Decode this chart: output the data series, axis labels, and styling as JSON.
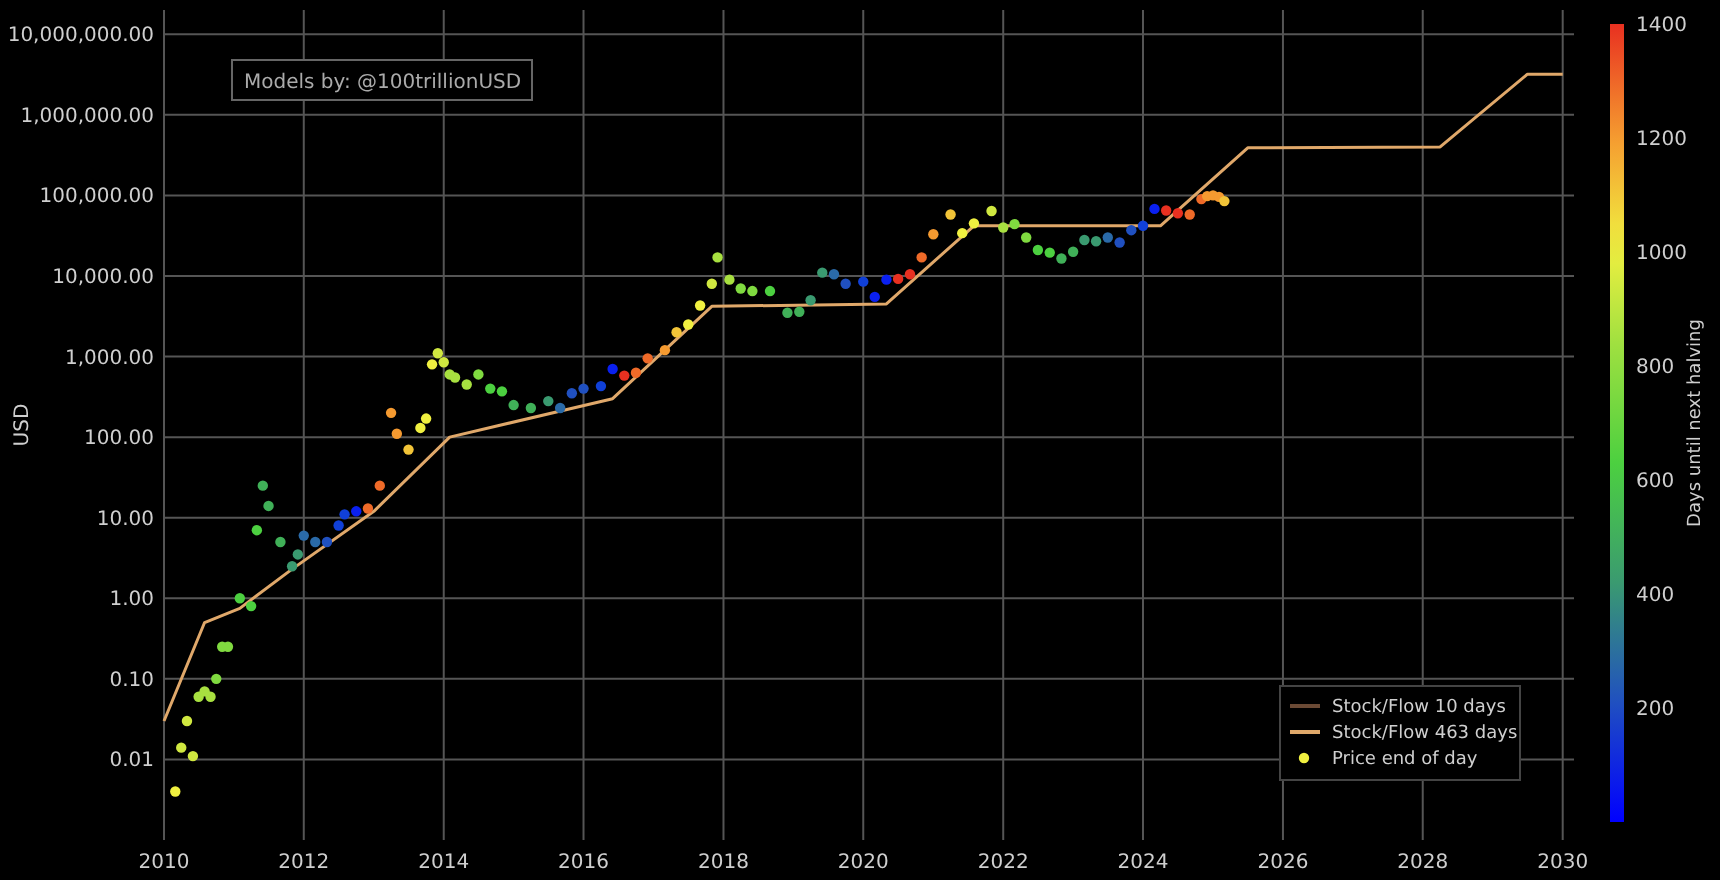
{
  "chart_data": {
    "type": "scatter",
    "ylabel": "USD",
    "clabel": "Days until next halving",
    "annotations": [
      "Models by: @100trillionUSD"
    ],
    "log": true,
    "grid": true,
    "legend": "bottom right",
    "xlim": [
      "2010-01",
      "2030-03"
    ],
    "xticks": [
      "2010",
      "2012",
      "2014",
      "2016",
      "2018",
      "2020",
      "2022",
      "2024",
      "2026",
      "2028",
      "2030"
    ],
    "ylim": [
      0.001,
      20000000
    ],
    "yticks": [
      {
        "value": 0.01,
        "label": "0.01"
      },
      {
        "value": 0.1,
        "label": "0.10"
      },
      {
        "value": 1,
        "label": "1.00"
      },
      {
        "value": 10,
        "label": "10.00"
      },
      {
        "value": 100,
        "label": "100.00"
      },
      {
        "value": 1000,
        "label": "1,000.00"
      },
      {
        "value": 10000,
        "label": "10,000.00"
      },
      {
        "value": 100000,
        "label": "100,000.00"
      },
      {
        "value": 1000000,
        "label": "1,000,000.00"
      },
      {
        "value": 10000000,
        "label": "10,000,000.00"
      }
    ],
    "clim": [
      0,
      1400
    ],
    "cticks": [
      200,
      400,
      600,
      800,
      1000,
      1200,
      1400
    ],
    "series": [
      {
        "name": "Stock/Flow 10 days",
        "type": "line",
        "color": "#6b4a35"
      },
      {
        "name": "Stock/Flow 463 days",
        "type": "line",
        "color": "#e0a86a",
        "x": [
          "2010-01",
          "2010-08",
          "2011-02",
          "2011-11",
          "2013-01",
          "2014-02",
          "2016-06",
          "2017-11",
          "2020-05",
          "2021-08",
          "2024-04",
          "2025-07",
          "2028-04",
          "2029-07",
          "2030-01"
        ],
        "values": [
          0.03,
          0.5,
          0.75,
          2.3,
          12,
          100,
          300,
          4200,
          4500,
          42000,
          42000,
          390000,
          400000,
          3200000,
          3200000
        ]
      },
      {
        "name": "Price end of day",
        "type": "scatter",
        "marker": "circle",
        "x": [
          "2010-03",
          "2010-04",
          "2010-05",
          "2010-06",
          "2010-07",
          "2010-08",
          "2010-09",
          "2010-10",
          "2010-11",
          "2010-12",
          "2011-02",
          "2011-04",
          "2011-05",
          "2011-06",
          "2011-07",
          "2011-09",
          "2011-11",
          "2011-12",
          "2012-01",
          "2012-03",
          "2012-05",
          "2012-07",
          "2012-08",
          "2012-10",
          "2012-12",
          "2013-02",
          "2013-04",
          "2013-05",
          "2013-07",
          "2013-09",
          "2013-10",
          "2013-11",
          "2013-12",
          "2014-01",
          "2014-02",
          "2014-03",
          "2014-05",
          "2014-07",
          "2014-09",
          "2014-11",
          "2015-01",
          "2015-04",
          "2015-07",
          "2015-09",
          "2015-11",
          "2016-01",
          "2016-04",
          "2016-06",
          "2016-08",
          "2016-10",
          "2016-12",
          "2017-03",
          "2017-05",
          "2017-07",
          "2017-09",
          "2017-11",
          "2017-12",
          "2018-02",
          "2018-04",
          "2018-06",
          "2018-09",
          "2018-12",
          "2019-02",
          "2019-04",
          "2019-06",
          "2019-08",
          "2019-10",
          "2020-01",
          "2020-03",
          "2020-05",
          "2020-07",
          "2020-09",
          "2020-11",
          "2021-01",
          "2021-04",
          "2021-06",
          "2021-08",
          "2021-11",
          "2022-01",
          "2022-03",
          "2022-05",
          "2022-07",
          "2022-09",
          "2022-11",
          "2023-01",
          "2023-03",
          "2023-05",
          "2023-07",
          "2023-09",
          "2023-11",
          "2024-01",
          "2024-03",
          "2024-05",
          "2024-07",
          "2024-09",
          "2024-11",
          "2024-12",
          "2025-01",
          "2025-02",
          "2025-03"
        ],
        "values": [
          0.004,
          0.014,
          0.03,
          0.011,
          0.06,
          0.07,
          0.06,
          0.1,
          0.25,
          0.25,
          1,
          0.8,
          7,
          25,
          14,
          5,
          2.5,
          3.5,
          6,
          5,
          5,
          8,
          11,
          12,
          13,
          25,
          200,
          110,
          70,
          130,
          170,
          800,
          1100,
          850,
          600,
          550,
          450,
          600,
          400,
          370,
          250,
          230,
          280,
          230,
          350,
          400,
          430,
          700,
          580,
          630,
          950,
          1200,
          2000,
          2500,
          4300,
          8000,
          17000,
          9000,
          7000,
          6500,
          6500,
          3500,
          3600,
          5000,
          11000,
          10500,
          8000,
          8500,
          5500,
          9000,
          9200,
          10500,
          17000,
          33000,
          58000,
          34000,
          45000,
          64000,
          40000,
          44000,
          30000,
          21000,
          19500,
          16500,
          20000,
          28000,
          27000,
          30000,
          26000,
          37000,
          42000,
          68000,
          65000,
          60000,
          58000,
          90000,
          98000,
          100000,
          96000,
          85000
        ],
        "colors": [
          "#f0f040",
          "#d0e840",
          "#d0e840",
          "#d0e840",
          "#a8e040",
          "#a8e040",
          "#a8e040",
          "#80da40",
          "#80da40",
          "#80da40",
          "#4cd040",
          "#4cd040",
          "#4cd040",
          "#40b058",
          "#40b058",
          "#40b058",
          "#3a9a70",
          "#3a9a70",
          "#2a6aa8",
          "#2a6aa8",
          "#2050c0",
          "#1040d8",
          "#1040d8",
          "#0a20f0",
          "#ef6a28",
          "#ef6a28",
          "#f59a30",
          "#f59a30",
          "#f2c438",
          "#f0f040",
          "#f0f040",
          "#f0f040",
          "#d0e840",
          "#d0e840",
          "#a8e040",
          "#a8e040",
          "#a8e040",
          "#80da40",
          "#4cd040",
          "#4cd040",
          "#40b058",
          "#40b058",
          "#3a9a70",
          "#2a6aa8",
          "#2050c0",
          "#2050c0",
          "#1040d8",
          "#0a20f0",
          "#e83020",
          "#ef6a28",
          "#ef6a28",
          "#f59a30",
          "#f2c438",
          "#f0f040",
          "#f0f040",
          "#d0e840",
          "#a8e040",
          "#a8e040",
          "#80da40",
          "#80da40",
          "#4cd040",
          "#40b058",
          "#40b058",
          "#3a9a70",
          "#3a9a70",
          "#2a6aa8",
          "#2050c0",
          "#1040d8",
          "#0a20f0",
          "#0a20f0",
          "#e83020",
          "#e83020",
          "#ef6a28",
          "#f59a30",
          "#f2c438",
          "#f0f040",
          "#f0f040",
          "#d0e840",
          "#a8e040",
          "#80da40",
          "#80da40",
          "#4cd040",
          "#4cd040",
          "#40b058",
          "#40b058",
          "#3a9a70",
          "#3a9a70",
          "#2a6aa8",
          "#2050c0",
          "#2050c0",
          "#1040d8",
          "#0a20f0",
          "#e83020",
          "#e83020",
          "#ef6a28",
          "#ef6a28",
          "#f59a30",
          "#f59a30",
          "#f59a30",
          "#f2c438"
        ]
      }
    ]
  }
}
